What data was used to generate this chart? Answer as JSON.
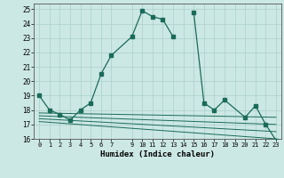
{
  "xlabel": "Humidex (Indice chaleur)",
  "bg_color": "#cce8e4",
  "line_color": "#1a6b5a",
  "grid_color": "#aacfca",
  "xlim": [
    -0.5,
    23.5
  ],
  "ylim": [
    16,
    25.4
  ],
  "yticks": [
    16,
    17,
    18,
    19,
    20,
    21,
    22,
    23,
    24,
    25
  ],
  "xticks": [
    0,
    1,
    2,
    3,
    4,
    5,
    6,
    7,
    9,
    10,
    11,
    12,
    13,
    14,
    15,
    16,
    17,
    18,
    19,
    20,
    21,
    22,
    23
  ],
  "series1_x": [
    0,
    1,
    2,
    3,
    4,
    5,
    6,
    7,
    9,
    10,
    11,
    12,
    13
  ],
  "series1_y": [
    19,
    18,
    17.7,
    17.3,
    18,
    18.5,
    20.5,
    21.8,
    23.1,
    24.9,
    24.5,
    24.3,
    23.1
  ],
  "series2_x": [
    15,
    16,
    17,
    18,
    20,
    21,
    22,
    23
  ],
  "series2_y": [
    24.8,
    18.5,
    18.0,
    18.7,
    17.5,
    18.3,
    17.0,
    15.9
  ],
  "flat_lines": [
    {
      "x": [
        0,
        23
      ],
      "y": [
        17.8,
        17.5
      ]
    },
    {
      "x": [
        0,
        23
      ],
      "y": [
        17.6,
        17.0
      ]
    },
    {
      "x": [
        0,
        23
      ],
      "y": [
        17.4,
        16.5
      ]
    },
    {
      "x": [
        0,
        23
      ],
      "y": [
        17.2,
        16.0
      ]
    }
  ]
}
